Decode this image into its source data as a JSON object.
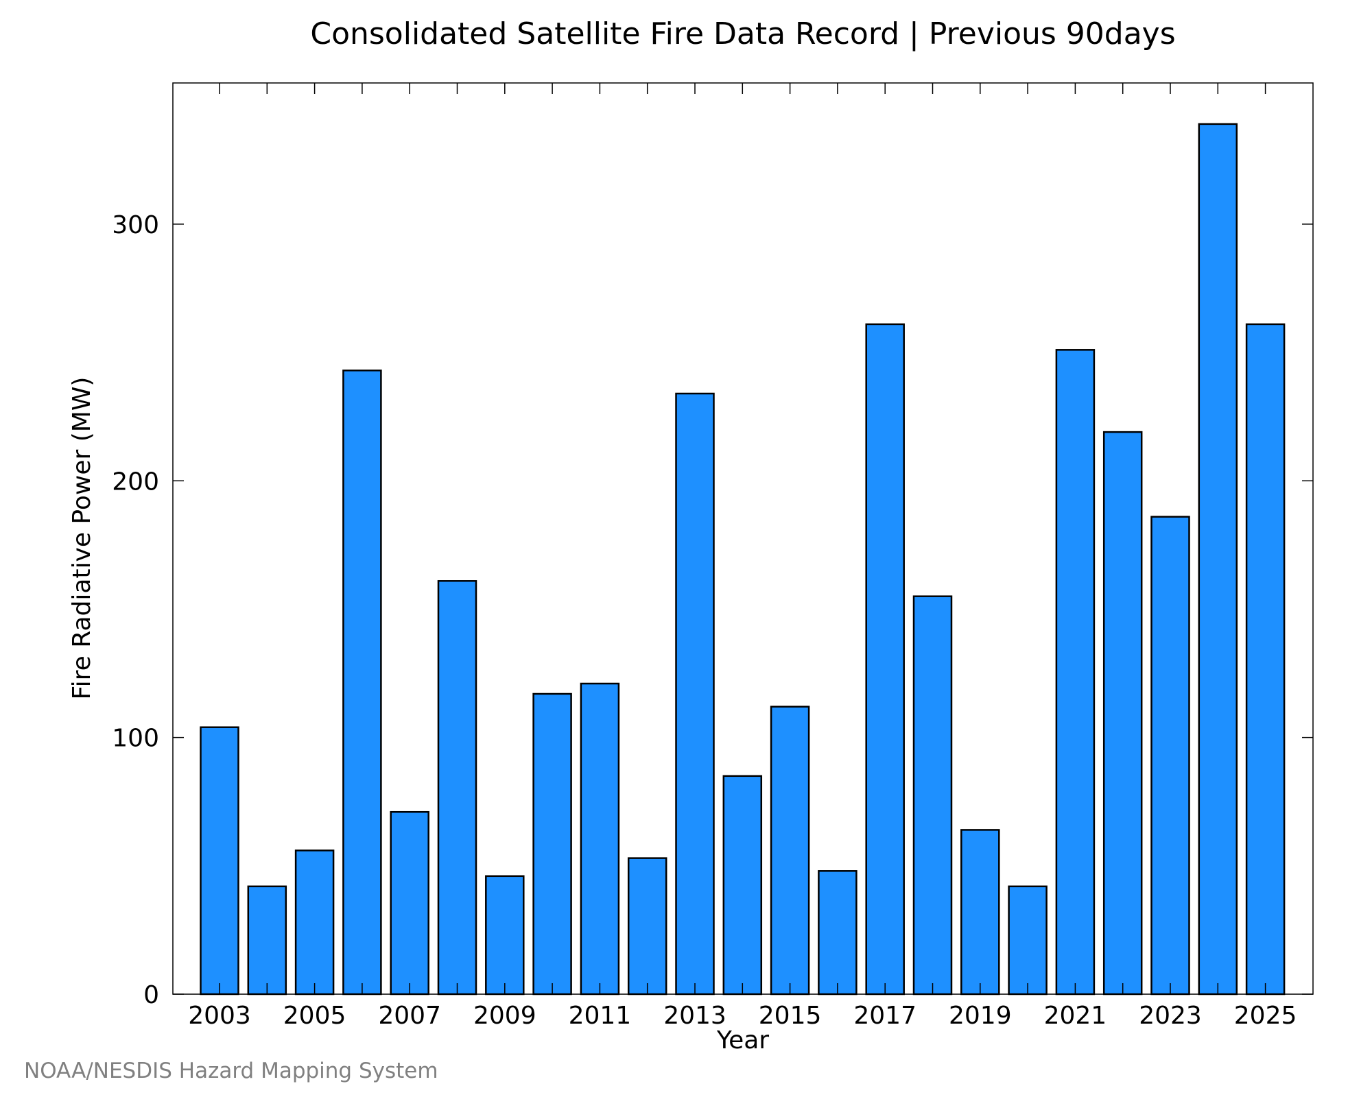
{
  "chart_data": {
    "type": "bar",
    "title": "Consolidated Satellite Fire Data Record | Previous 90days",
    "xlabel": "Year",
    "ylabel": "Fire Radiative Power (MW)",
    "credit": "NOAA/NESDIS Hazard Mapping System",
    "categories": [
      "2003",
      "2004",
      "2005",
      "2006",
      "2007",
      "2008",
      "2009",
      "2010",
      "2011",
      "2012",
      "2013",
      "2014",
      "2015",
      "2016",
      "2017",
      "2018",
      "2019",
      "2020",
      "2021",
      "2022",
      "2023",
      "2024",
      "2025"
    ],
    "values": [
      104,
      42,
      56,
      243,
      71,
      161,
      46,
      117,
      121,
      53,
      234,
      85,
      112,
      48,
      261,
      155,
      64,
      42,
      251,
      219,
      186,
      339,
      261
    ],
    "x_tick_labels": [
      "2003",
      "2005",
      "2007",
      "2009",
      "2011",
      "2013",
      "2015",
      "2017",
      "2019",
      "2021",
      "2023",
      "2025"
    ],
    "y_ticks": [
      0,
      100,
      200,
      300
    ],
    "ylim": [
      0,
      355
    ],
    "grid": false,
    "legend": "none",
    "colors": {
      "bar_fill": "#1e90ff",
      "bar_stroke": "#000000",
      "axis": "#000000",
      "credit": "#808080"
    }
  }
}
